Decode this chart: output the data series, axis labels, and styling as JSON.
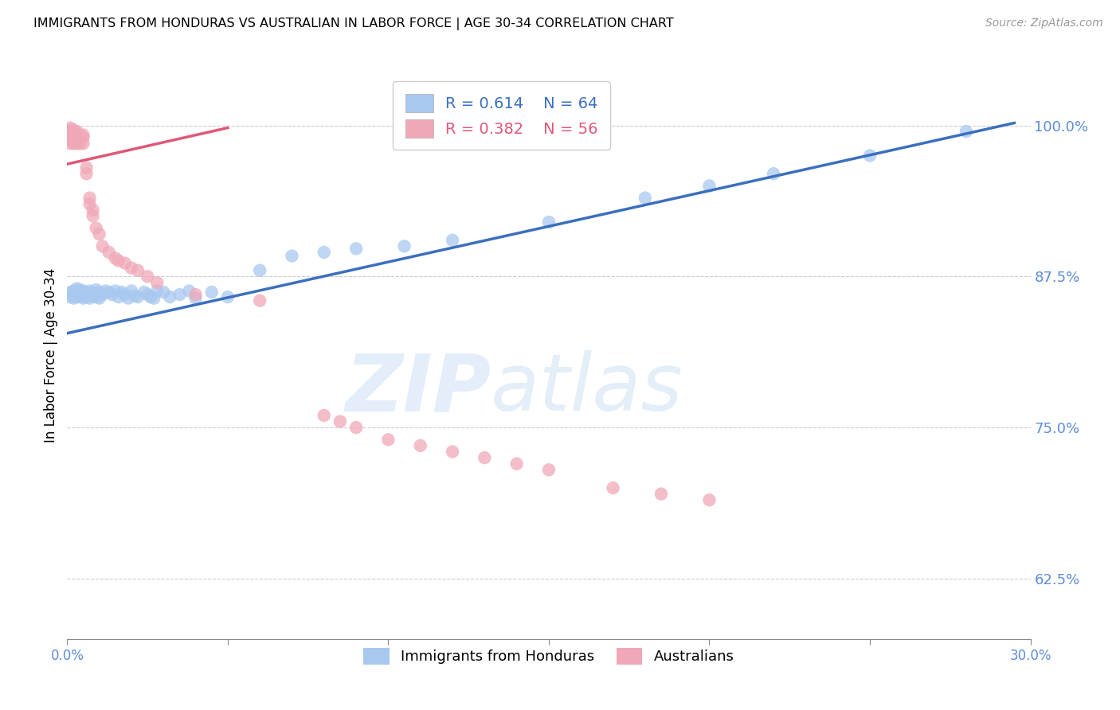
{
  "title": "IMMIGRANTS FROM HONDURAS VS AUSTRALIAN IN LABOR FORCE | AGE 30-34 CORRELATION CHART",
  "source": "Source: ZipAtlas.com",
  "ylabel": "In Labor Force | Age 30-34",
  "xlim": [
    0.0,
    0.3
  ],
  "ylim": [
    0.575,
    1.045
  ],
  "xticks": [
    0.0,
    0.05,
    0.1,
    0.15,
    0.2,
    0.25,
    0.3
  ],
  "xticklabels": [
    "0.0%",
    "",
    "",
    "",
    "",
    "",
    "30.0%"
  ],
  "yticks_right": [
    0.625,
    0.75,
    0.875,
    1.0
  ],
  "ytick_labels_right": [
    "62.5%",
    "75.0%",
    "87.5%",
    "100.0%"
  ],
  "blue_color": "#A8C8F0",
  "pink_color": "#F0A8B8",
  "blue_line_color": "#3B6FBF",
  "pink_line_color": "#E05878",
  "R_blue": 0.614,
  "N_blue": 64,
  "R_pink": 0.382,
  "N_pink": 56,
  "legend_label_blue": "Immigrants from Honduras",
  "legend_label_pink": "Australians",
  "watermark_zip": "ZIP",
  "watermark_atlas": "atlas",
  "axis_label_color": "#5B8DD9",
  "grid_color": "#CCCCCC",
  "blue_scatter_x": [
    0.001,
    0.001,
    0.002,
    0.002,
    0.002,
    0.003,
    0.003,
    0.003,
    0.003,
    0.004,
    0.004,
    0.004,
    0.005,
    0.005,
    0.005,
    0.005,
    0.006,
    0.006,
    0.006,
    0.007,
    0.007,
    0.007,
    0.008,
    0.008,
    0.009,
    0.009,
    0.01,
    0.01,
    0.011,
    0.012,
    0.013,
    0.014,
    0.015,
    0.016,
    0.017,
    0.018,
    0.019,
    0.02,
    0.021,
    0.022,
    0.024,
    0.025,
    0.026,
    0.027,
    0.028,
    0.03,
    0.032,
    0.035,
    0.038,
    0.04,
    0.045,
    0.05,
    0.06,
    0.07,
    0.08,
    0.09,
    0.105,
    0.12,
    0.15,
    0.18,
    0.2,
    0.22,
    0.25,
    0.28
  ],
  "blue_scatter_y": [
    0.862,
    0.858,
    0.86,
    0.863,
    0.857,
    0.865,
    0.86,
    0.858,
    0.862,
    0.859,
    0.864,
    0.861,
    0.86,
    0.863,
    0.857,
    0.859,
    0.862,
    0.86,
    0.858,
    0.863,
    0.86,
    0.857,
    0.861,
    0.859,
    0.864,
    0.858,
    0.862,
    0.857,
    0.86,
    0.863,
    0.862,
    0.86,
    0.863,
    0.858,
    0.862,
    0.86,
    0.857,
    0.863,
    0.859,
    0.858,
    0.862,
    0.86,
    0.858,
    0.857,
    0.863,
    0.862,
    0.858,
    0.86,
    0.863,
    0.857,
    0.862,
    0.858,
    0.88,
    0.892,
    0.895,
    0.898,
    0.9,
    0.905,
    0.92,
    0.94,
    0.95,
    0.96,
    0.975,
    0.995
  ],
  "pink_scatter_x": [
    0.001,
    0.001,
    0.001,
    0.001,
    0.001,
    0.001,
    0.001,
    0.001,
    0.002,
    0.002,
    0.002,
    0.002,
    0.002,
    0.002,
    0.003,
    0.003,
    0.003,
    0.003,
    0.003,
    0.004,
    0.004,
    0.004,
    0.005,
    0.005,
    0.005,
    0.006,
    0.006,
    0.007,
    0.007,
    0.008,
    0.008,
    0.009,
    0.01,
    0.011,
    0.013,
    0.015,
    0.016,
    0.018,
    0.02,
    0.022,
    0.025,
    0.028,
    0.04,
    0.06,
    0.08,
    0.085,
    0.09,
    0.1,
    0.11,
    0.12,
    0.13,
    0.14,
    0.15,
    0.17,
    0.185,
    0.2
  ],
  "pink_scatter_y": [
    0.99,
    0.995,
    0.998,
    0.992,
    0.988,
    0.985,
    0.993,
    0.996,
    0.99,
    0.995,
    0.985,
    0.992,
    0.988,
    0.996,
    0.99,
    0.995,
    0.985,
    0.992,
    0.988,
    0.99,
    0.985,
    0.992,
    0.99,
    0.985,
    0.992,
    0.965,
    0.96,
    0.94,
    0.935,
    0.93,
    0.925,
    0.915,
    0.91,
    0.9,
    0.895,
    0.89,
    0.888,
    0.886,
    0.882,
    0.88,
    0.875,
    0.87,
    0.86,
    0.855,
    0.76,
    0.755,
    0.75,
    0.74,
    0.735,
    0.73,
    0.725,
    0.72,
    0.715,
    0.7,
    0.695,
    0.69
  ],
  "blue_trend_x0": 0.0,
  "blue_trend_y0": 0.828,
  "blue_trend_x1": 0.295,
  "blue_trend_y1": 1.002,
  "pink_trend_x0": 0.0,
  "pink_trend_y0": 0.968,
  "pink_trend_x1": 0.05,
  "pink_trend_y1": 0.998
}
